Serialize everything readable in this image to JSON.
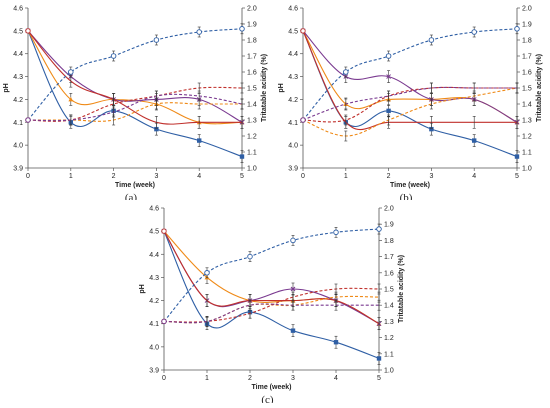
{
  "figure": {
    "panel_labels": [
      "(a)",
      "(b)",
      "(c)"
    ]
  },
  "chart_data": [
    {
      "type": "line",
      "panel_label": "(a)",
      "xlabel": "Time (week)",
      "ylabel": "pH",
      "y2label": "Tritatable acidity (%)",
      "x": [
        0,
        1,
        2,
        3,
        4,
        5
      ],
      "xlim": [
        0,
        5
      ],
      "ylim": [
        3.9,
        4.6
      ],
      "y2lim": [
        1.0,
        2.0
      ],
      "yticks": [
        "3.9",
        "4.0",
        "4.1",
        "4.2",
        "4.3",
        "4.4",
        "4.5",
        "4.6"
      ],
      "y2ticks": [
        "1.0",
        "1.1",
        "1.2",
        "1.3",
        "1.4",
        "1.5",
        "1.6",
        "1.7",
        "1.8",
        "1.9",
        "2.0"
      ],
      "series": [
        {
          "axis": "left",
          "color": "#2f5fa5",
          "dash": false,
          "marker": "square",
          "values": [
            4.5,
            4.1,
            4.15,
            4.07,
            4.02,
            3.95
          ]
        },
        {
          "axis": "left",
          "color": "#ef8a17",
          "dash": false,
          "marker": "triangle",
          "values": [
            4.5,
            4.2,
            4.2,
            4.18,
            4.1,
            4.1
          ]
        },
        {
          "axis": "left",
          "color": "#7a3a90",
          "dash": false,
          "marker": "cross",
          "values": [
            4.5,
            4.3,
            4.2,
            4.2,
            4.2,
            4.1
          ]
        },
        {
          "axis": "left",
          "color": "#c0302c",
          "dash": false,
          "marker": "none",
          "values": [
            4.5,
            4.28,
            4.2,
            4.1,
            4.1,
            4.1
          ]
        },
        {
          "axis": "right",
          "color": "#2f5fa5",
          "dash": true,
          "marker": "circle-open",
          "values": [
            1.3,
            1.6,
            1.7,
            1.8,
            1.85,
            1.87
          ]
        },
        {
          "axis": "right",
          "color": "#ef8a17",
          "dash": true,
          "marker": "none",
          "values": [
            1.3,
            1.3,
            1.3,
            1.4,
            1.4,
            1.4
          ]
        },
        {
          "axis": "right",
          "color": "#c0302c",
          "dash": true,
          "marker": "none",
          "values": [
            1.3,
            1.3,
            1.4,
            1.45,
            1.5,
            1.5
          ]
        },
        {
          "axis": "right",
          "color": "#7a3a90",
          "dash": true,
          "marker": "none",
          "values": [
            1.3,
            1.3,
            1.35,
            1.45,
            1.45,
            1.4
          ]
        }
      ]
    },
    {
      "type": "line",
      "panel_label": "(b)",
      "xlabel": "Time (week)",
      "ylabel": "pH",
      "y2label": "Tritatable acidity (%)",
      "x": [
        0,
        1,
        2,
        3,
        4,
        5
      ],
      "xlim": [
        0,
        5
      ],
      "ylim": [
        3.9,
        4.6
      ],
      "y2lim": [
        1.0,
        2.0
      ],
      "yticks": [
        "3.9",
        "4.0",
        "4.1",
        "4.2",
        "4.3",
        "4.4",
        "4.5",
        "4.6"
      ],
      "y2ticks": [
        "1.0",
        "1.1",
        "1.2",
        "1.3",
        "1.4",
        "1.5",
        "1.6",
        "1.7",
        "1.8",
        "1.9",
        "2.0"
      ],
      "series": [
        {
          "axis": "left",
          "color": "#2f5fa5",
          "dash": false,
          "marker": "square",
          "values": [
            4.5,
            4.1,
            4.15,
            4.07,
            4.02,
            3.95
          ]
        },
        {
          "axis": "left",
          "color": "#ef8a17",
          "dash": false,
          "marker": "triangle",
          "values": [
            4.5,
            4.18,
            4.2,
            4.2,
            4.2,
            4.1
          ]
        },
        {
          "axis": "left",
          "color": "#7a3a90",
          "dash": false,
          "marker": "cross",
          "values": [
            4.5,
            4.3,
            4.3,
            4.2,
            4.2,
            4.1
          ]
        },
        {
          "axis": "left",
          "color": "#c0302c",
          "dash": false,
          "marker": "none",
          "values": [
            4.5,
            4.1,
            4.1,
            4.1,
            4.1,
            4.1
          ]
        },
        {
          "axis": "right",
          "color": "#2f5fa5",
          "dash": true,
          "marker": "circle-open",
          "values": [
            1.3,
            1.6,
            1.7,
            1.8,
            1.85,
            1.87
          ]
        },
        {
          "axis": "right",
          "color": "#ef8a17",
          "dash": true,
          "marker": "none",
          "values": [
            1.3,
            1.2,
            1.3,
            1.4,
            1.45,
            1.5
          ]
        },
        {
          "axis": "right",
          "color": "#c0302c",
          "dash": true,
          "marker": "none",
          "values": [
            1.3,
            1.3,
            1.45,
            1.5,
            1.5,
            1.5
          ]
        },
        {
          "axis": "right",
          "color": "#7a3a90",
          "dash": true,
          "marker": "none",
          "values": [
            1.3,
            1.4,
            1.45,
            1.5,
            1.5,
            1.5
          ]
        }
      ]
    },
    {
      "type": "line",
      "panel_label": "(c)",
      "xlabel": "Time (week)",
      "ylabel": "pH",
      "y2label": "Tritatable acidity (%)",
      "x": [
        0,
        1,
        2,
        3,
        4,
        5
      ],
      "xlim": [
        0,
        5
      ],
      "ylim": [
        3.9,
        4.6
      ],
      "y2lim": [
        1.0,
        2.0
      ],
      "yticks": [
        "3.9",
        "4.0",
        "4.1",
        "4.2",
        "4.3",
        "4.4",
        "4.5",
        "4.6"
      ],
      "y2ticks": [
        "1.0",
        "1.1",
        "1.2",
        "1.3",
        "1.4",
        "1.5",
        "1.6",
        "1.7",
        "1.8",
        "1.9",
        "2.0"
      ],
      "series": [
        {
          "axis": "left",
          "color": "#2f5fa5",
          "dash": false,
          "marker": "square",
          "values": [
            4.5,
            4.1,
            4.15,
            4.07,
            4.02,
            3.95
          ]
        },
        {
          "axis": "left",
          "color": "#ef8a17",
          "dash": false,
          "marker": "triangle",
          "values": [
            4.5,
            4.3,
            4.2,
            4.2,
            4.2,
            4.1
          ]
        },
        {
          "axis": "left",
          "color": "#7a3a90",
          "dash": false,
          "marker": "cross",
          "values": [
            4.5,
            4.2,
            4.2,
            4.25,
            4.2,
            4.1
          ]
        },
        {
          "axis": "left",
          "color": "#c0302c",
          "dash": false,
          "marker": "none",
          "values": [
            4.5,
            4.2,
            4.2,
            4.2,
            4.2,
            4.1
          ]
        },
        {
          "axis": "right",
          "color": "#2f5fa5",
          "dash": true,
          "marker": "circle-open",
          "values": [
            1.3,
            1.6,
            1.7,
            1.8,
            1.85,
            1.87
          ]
        },
        {
          "axis": "right",
          "color": "#ef8a17",
          "dash": true,
          "marker": "none",
          "values": [
            1.3,
            1.3,
            1.4,
            1.4,
            1.45,
            1.45
          ]
        },
        {
          "axis": "right",
          "color": "#c0302c",
          "dash": true,
          "marker": "none",
          "values": [
            1.3,
            1.3,
            1.35,
            1.45,
            1.5,
            1.5
          ]
        },
        {
          "axis": "right",
          "color": "#7a3a90",
          "dash": true,
          "marker": "none",
          "values": [
            1.3,
            1.3,
            1.4,
            1.4,
            1.4,
            1.4
          ]
        }
      ]
    }
  ]
}
